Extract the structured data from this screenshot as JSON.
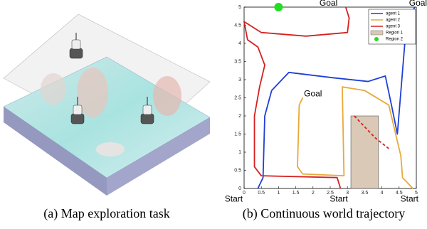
{
  "subfigures": [
    {
      "caption": "(a) Map exploration task"
    },
    {
      "caption": "(b) Continuous world trajectory"
    }
  ],
  "chart_data": {
    "type": "line",
    "xlim": [
      0,
      5
    ],
    "ylim": [
      0,
      5
    ],
    "xticks": [
      0,
      0.5,
      1,
      1.5,
      2,
      2.5,
      3,
      3.5,
      4,
      4.5,
      5
    ],
    "yticks": [
      0,
      0.5,
      1,
      1.5,
      2,
      2.5,
      3,
      3.5,
      4,
      4.5,
      5
    ],
    "legend": "upper right",
    "series": [
      {
        "name": "agent 1",
        "color": "#1f3fd6",
        "x": [
          0.4,
          0.55,
          0.6,
          0.8,
          1.3,
          2.6,
          3.6,
          4.1,
          4.3,
          4.45,
          4.7,
          4.95
        ],
        "y": [
          0,
          0.3,
          2.0,
          2.7,
          3.2,
          3.05,
          2.95,
          3.1,
          2.2,
          1.5,
          4.4,
          5.0
        ]
      },
      {
        "name": "agent 2",
        "color": "#e8a93a",
        "x": [
          1.7,
          1.6,
          1.55,
          1.7,
          2.9,
          2.85,
          3.5,
          4.2,
          4.4,
          4.55,
          4.6,
          4.9
        ],
        "y": [
          2.5,
          2.3,
          0.6,
          0.4,
          0.35,
          2.8,
          2.7,
          2.3,
          1.5,
          0.9,
          0.3,
          0
        ],
        "dashed": null
      },
      {
        "name": "agent 3",
        "color": "#d62020",
        "x": [
          2.8,
          2.7,
          0.5,
          0.3,
          0.3,
          0.45,
          0.6,
          0.4,
          0.1,
          0.0,
          0.5,
          1.8,
          3.0,
          3.05,
          2.95
        ],
        "y": [
          0,
          0.3,
          0.35,
          0.6,
          2.0,
          2.8,
          3.4,
          3.9,
          4.1,
          4.6,
          4.3,
          4.2,
          4.3,
          4.7,
          5.0
        ],
        "dashed": {
          "x": [
            3.2,
            3.4,
            3.8,
            4.2
          ],
          "y": [
            2.0,
            1.8,
            1.4,
            1.1
          ]
        }
      }
    ],
    "regions": [
      {
        "name": "Region 1",
        "color": "#d9c9b6",
        "x": 3.1,
        "y": 0,
        "width": 0.8,
        "height": 2.0
      },
      {
        "name": "Region 2",
        "color": "#22dd22",
        "x": 1.0,
        "y": 5.0
      }
    ],
    "annotations": [
      {
        "text": "Goal",
        "x": 2.45,
        "y": 5.1
      },
      {
        "text": "Goal",
        "x": 5.05,
        "y": 5.1
      },
      {
        "text": "Goal",
        "x": 2.0,
        "y": 2.6
      },
      {
        "text": "Start",
        "x": -0.3,
        "y": -0.3
      },
      {
        "text": "Start",
        "x": 2.75,
        "y": -0.3
      },
      {
        "text": "Start",
        "x": 4.8,
        "y": -0.3
      }
    ]
  }
}
